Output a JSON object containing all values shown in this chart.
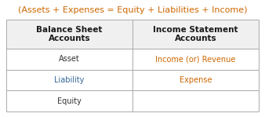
{
  "title": "(Assets + Expenses = Equity + Liabilities + Income)",
  "title_color": "#cc6600",
  "title_fontsize": 8.0,
  "col_headers": [
    "Balance Sheet\nAccounts",
    "Income Statement\nAccounts"
  ],
  "col_header_color": "#1a1a1a",
  "col_header_fontsize": 7.5,
  "rows": [
    [
      "Asset",
      "Income (or) Revenue"
    ],
    [
      "Liability",
      "Expense"
    ],
    [
      "Equity",
      ""
    ]
  ],
  "row_text_colors": [
    [
      "#333333",
      "#cc6600"
    ],
    [
      "#336699",
      "#cc6600"
    ],
    [
      "#333333",
      "#333333"
    ]
  ],
  "cell_fontsize": 7.0,
  "background_color": "#ffffff",
  "border_color": "#aaaaaa",
  "header_bg": "#eeeeee"
}
